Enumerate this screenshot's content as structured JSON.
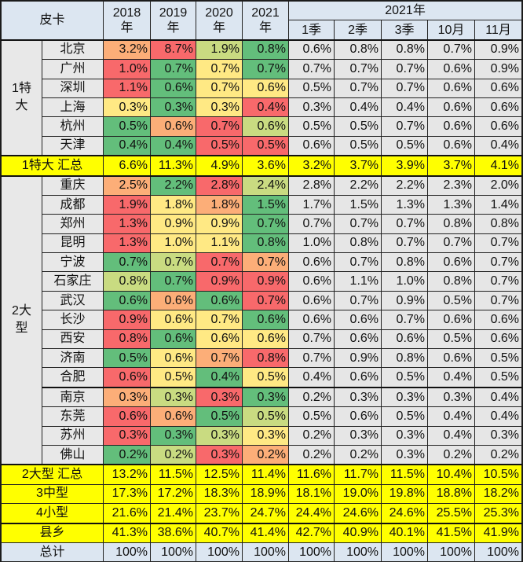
{
  "colors": {
    "R": "#f8696b",
    "O": "#fcae78",
    "Y": "#ffe984",
    "LG": "#c9db81",
    "G": "#63be7b",
    "summary": "#ffff00",
    "header": "#dce6f1"
  },
  "header": {
    "corner": "皮卡",
    "years": [
      "2018\n年",
      "2019\n年",
      "2020\n年",
      "2021\n年"
    ],
    "group_2021": "2021年",
    "periods": [
      "1季",
      "2季",
      "3季",
      "10月",
      "11月"
    ]
  },
  "groups": [
    {
      "label": "1特\n大",
      "rows": [
        {
          "city": "北京",
          "years": [
            "3.2%",
            "8.7%",
            "1.9%",
            "0.8%"
          ],
          "heat": [
            "O",
            "R",
            "LG",
            "G"
          ],
          "periods": [
            "0.6%",
            "0.8%",
            "0.8%",
            "0.7%",
            "0.9%"
          ]
        },
        {
          "city": "广州",
          "years": [
            "1.0%",
            "0.7%",
            "0.7%",
            "0.7%"
          ],
          "heat": [
            "R",
            "G",
            "Y",
            "G"
          ],
          "periods": [
            "0.7%",
            "0.7%",
            "0.7%",
            "0.6%",
            "0.9%"
          ]
        },
        {
          "city": "深圳",
          "years": [
            "1.1%",
            "0.6%",
            "0.7%",
            "0.6%"
          ],
          "heat": [
            "R",
            "G",
            "Y",
            "Y"
          ],
          "periods": [
            "0.5%",
            "0.7%",
            "0.7%",
            "0.6%",
            "0.6%"
          ]
        },
        {
          "city": "上海",
          "years": [
            "0.3%",
            "0.3%",
            "0.3%",
            "0.4%"
          ],
          "heat": [
            "Y",
            "G",
            "Y",
            "R"
          ],
          "periods": [
            "0.3%",
            "0.4%",
            "0.4%",
            "0.6%",
            "0.6%"
          ]
        },
        {
          "city": "杭州",
          "years": [
            "0.5%",
            "0.6%",
            "0.7%",
            "0.6%"
          ],
          "heat": [
            "G",
            "O",
            "R",
            "LG"
          ],
          "periods": [
            "0.5%",
            "0.5%",
            "0.7%",
            "0.6%",
            "0.6%"
          ]
        },
        {
          "city": "天津",
          "years": [
            "0.4%",
            "0.4%",
            "0.5%",
            "0.5%"
          ],
          "heat": [
            "G",
            "G",
            "R",
            "R"
          ],
          "periods": [
            "0.6%",
            "0.5%",
            "0.5%",
            "0.6%",
            "0.4%"
          ]
        }
      ],
      "summary": {
        "label": "1特大 汇总",
        "values": [
          "6.6%",
          "11.3%",
          "4.9%",
          "3.6%",
          "3.2%",
          "3.7%",
          "3.9%",
          "3.7%",
          "4.1%"
        ]
      }
    },
    {
      "label": "2大\n型",
      "rows": [
        {
          "city": "重庆",
          "years": [
            "2.5%",
            "2.2%",
            "2.8%",
            "2.4%"
          ],
          "heat": [
            "O",
            "G",
            "R",
            "LG"
          ],
          "periods": [
            "2.8%",
            "2.2%",
            "2.2%",
            "2.3%",
            "2.0%"
          ]
        },
        {
          "city": "成都",
          "years": [
            "1.9%",
            "1.8%",
            "1.8%",
            "1.5%"
          ],
          "heat": [
            "R",
            "Y",
            "O",
            "G"
          ],
          "periods": [
            "1.7%",
            "1.5%",
            "1.3%",
            "1.3%",
            "1.4%"
          ]
        },
        {
          "city": "郑州",
          "years": [
            "1.3%",
            "0.9%",
            "0.9%",
            "0.7%"
          ],
          "heat": [
            "R",
            "Y",
            "Y",
            "G"
          ],
          "periods": [
            "0.7%",
            "0.7%",
            "0.7%",
            "0.8%",
            "0.8%"
          ]
        },
        {
          "city": "昆明",
          "years": [
            "1.3%",
            "1.0%",
            "1.1%",
            "0.8%"
          ],
          "heat": [
            "R",
            "Y",
            "Y",
            "G"
          ],
          "periods": [
            "1.0%",
            "0.8%",
            "0.7%",
            "0.7%",
            "0.7%"
          ]
        },
        {
          "city": "宁波",
          "years": [
            "0.7%",
            "0.7%",
            "0.7%",
            "0.7%"
          ],
          "heat": [
            "G",
            "LG",
            "R",
            "O"
          ],
          "periods": [
            "0.6%",
            "0.7%",
            "0.8%",
            "0.6%",
            "0.7%"
          ]
        },
        {
          "city": "石家庄",
          "years": [
            "0.8%",
            "0.7%",
            "0.9%",
            "0.9%"
          ],
          "heat": [
            "LG",
            "G",
            "R",
            "R"
          ],
          "periods": [
            "0.6%",
            "1.1%",
            "1.0%",
            "0.8%",
            "0.7%"
          ]
        },
        {
          "city": "武汉",
          "years": [
            "0.6%",
            "0.6%",
            "0.6%",
            "0.7%"
          ],
          "heat": [
            "G",
            "O",
            "G",
            "R"
          ],
          "periods": [
            "0.6%",
            "0.7%",
            "0.9%",
            "0.5%",
            "0.7%"
          ]
        },
        {
          "city": "长沙",
          "years": [
            "0.9%",
            "0.6%",
            "0.7%",
            "0.6%"
          ],
          "heat": [
            "R",
            "Y",
            "Y",
            "G"
          ],
          "periods": [
            "0.6%",
            "0.6%",
            "0.7%",
            "0.6%",
            "0.6%"
          ]
        },
        {
          "city": "西安",
          "years": [
            "0.8%",
            "0.6%",
            "0.6%",
            "0.6%"
          ],
          "heat": [
            "R",
            "G",
            "Y",
            "Y"
          ],
          "periods": [
            "0.7%",
            "0.6%",
            "0.6%",
            "0.5%",
            "0.6%"
          ]
        },
        {
          "city": "济南",
          "years": [
            "0.5%",
            "0.6%",
            "0.7%",
            "0.8%"
          ],
          "heat": [
            "G",
            "Y",
            "O",
            "R"
          ],
          "periods": [
            "0.7%",
            "0.9%",
            "0.8%",
            "0.6%",
            "0.5%"
          ]
        },
        {
          "city": "合肥",
          "years": [
            "0.6%",
            "0.5%",
            "0.4%",
            "0.5%"
          ],
          "heat": [
            "R",
            "Y",
            "G",
            "Y"
          ],
          "periods": [
            "0.4%",
            "0.6%",
            "0.5%",
            "0.4%",
            "0.5%"
          ]
        },
        {
          "city": "南京",
          "years": [
            "0.3%",
            "0.3%",
            "0.3%",
            "0.3%"
          ],
          "heat": [
            "O",
            "LG",
            "R",
            "G"
          ],
          "periods": [
            "0.2%",
            "0.3%",
            "0.3%",
            "0.3%",
            "0.4%"
          ]
        },
        {
          "city": "东莞",
          "years": [
            "0.6%",
            "0.6%",
            "0.5%",
            "0.5%"
          ],
          "heat": [
            "R",
            "O",
            "G",
            "LG"
          ],
          "periods": [
            "0.5%",
            "0.6%",
            "0.5%",
            "0.4%",
            "0.4%"
          ]
        },
        {
          "city": "苏州",
          "years": [
            "0.3%",
            "0.3%",
            "0.3%",
            "0.3%"
          ],
          "heat": [
            "R",
            "G",
            "LG",
            "Y"
          ],
          "periods": [
            "0.2%",
            "0.3%",
            "0.3%",
            "0.4%",
            "0.3%"
          ]
        },
        {
          "city": "佛山",
          "years": [
            "0.2%",
            "0.2%",
            "0.3%",
            "0.2%"
          ],
          "heat": [
            "G",
            "LG",
            "R",
            "O"
          ],
          "periods": [
            "0.2%",
            "0.2%",
            "0.3%",
            "0.2%",
            "0.2%"
          ]
        }
      ],
      "summary": {
        "label": "2大型 汇总",
        "values": [
          "13.2%",
          "11.5%",
          "12.5%",
          "11.4%",
          "11.6%",
          "11.7%",
          "11.5%",
          "10.4%",
          "10.5%"
        ]
      }
    }
  ],
  "other_rows": [
    {
      "label": "3中型",
      "values": [
        "17.3%",
        "17.2%",
        "18.3%",
        "18.9%",
        "18.1%",
        "19.0%",
        "19.8%",
        "18.8%",
        "18.2%"
      ]
    },
    {
      "label": "4小型",
      "values": [
        "21.6%",
        "21.4%",
        "23.7%",
        "24.7%",
        "24.4%",
        "24.6%",
        "24.6%",
        "25.5%",
        "25.3%"
      ]
    },
    {
      "label": "县乡",
      "values": [
        "41.3%",
        "38.6%",
        "40.7%",
        "41.4%",
        "42.7%",
        "40.9%",
        "40.1%",
        "41.5%",
        "41.9%"
      ]
    }
  ],
  "total": {
    "label": "总计",
    "values": [
      "100%",
      "100%",
      "100%",
      "100%",
      "100%",
      "100%",
      "100%",
      "100%",
      "100%"
    ]
  }
}
